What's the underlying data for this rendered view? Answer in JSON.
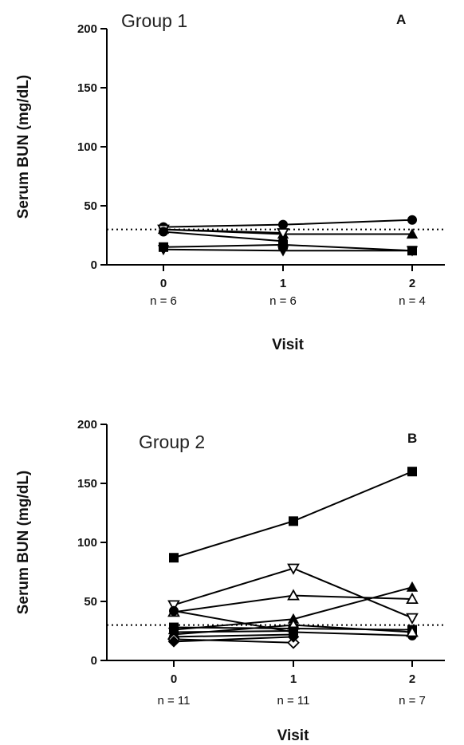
{
  "chart_data": [
    {
      "type": "line",
      "panel_label": "A",
      "title": "Group 1",
      "ylabel": "Serum BUN (mg/dL)",
      "xlabel": "Visit",
      "ylim": [
        0,
        200
      ],
      "yticks": [
        "0",
        "50",
        "100",
        "150",
        "200"
      ],
      "categories": [
        "0",
        "1",
        "2"
      ],
      "n_labels": [
        "n = 6",
        "n = 6",
        "n = 4"
      ],
      "reference_line": 30,
      "series": [
        {
          "marker": "circle",
          "values": [
            32,
            34,
            38
          ]
        },
        {
          "marker": "triangle-up",
          "values": [
            30,
            26,
            26
          ]
        },
        {
          "marker": "triangle-down-open",
          "values": [
            30,
            27,
            null
          ]
        },
        {
          "marker": "circle",
          "values": [
            28,
            20,
            null
          ]
        },
        {
          "marker": "square",
          "values": [
            15,
            17,
            12
          ]
        },
        {
          "marker": "triangle-down",
          "values": [
            13,
            12,
            12
          ]
        }
      ]
    },
    {
      "type": "line",
      "panel_label": "B",
      "title": "Group 2",
      "ylabel": "Serum BUN (mg/dL)",
      "xlabel": "Visit",
      "ylim": [
        0,
        200
      ],
      "yticks": [
        "0",
        "50",
        "100",
        "150",
        "200"
      ],
      "categories": [
        "0",
        "1",
        "2"
      ],
      "n_labels": [
        "n = 11",
        "n = 11",
        "n = 7"
      ],
      "reference_line": 30,
      "series": [
        {
          "marker": "square",
          "values": [
            87,
            118,
            160
          ]
        },
        {
          "marker": "triangle-down-open",
          "values": [
            47,
            78,
            36
          ]
        },
        {
          "marker": "triangle-up-open",
          "values": [
            41,
            55,
            52
          ]
        },
        {
          "marker": "triangle-up",
          "values": [
            26,
            35,
            62
          ]
        },
        {
          "marker": "circle",
          "values": [
            42,
            24,
            21
          ]
        },
        {
          "marker": "square",
          "values": [
            28,
            27,
            26
          ]
        },
        {
          "marker": "triangle-up-open",
          "values": [
            22,
            30,
            24
          ]
        },
        {
          "marker": "triangle-down",
          "values": [
            24,
            25,
            null
          ]
        },
        {
          "marker": "circle",
          "values": [
            20,
            22,
            null
          ]
        },
        {
          "marker": "diamond-open",
          "values": [
            18,
            15,
            null
          ]
        },
        {
          "marker": "diamond",
          "values": [
            16,
            20,
            null
          ]
        }
      ]
    }
  ]
}
